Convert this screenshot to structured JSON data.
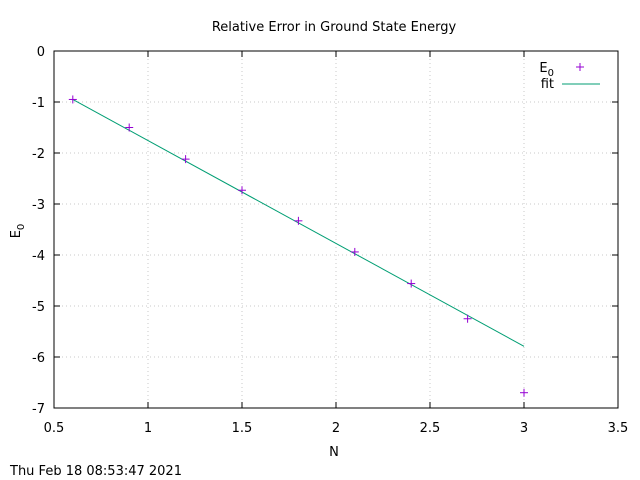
{
  "chart_data": {
    "type": "scatter",
    "title": "Relative Error in Ground State Energy",
    "xlabel": "N",
    "ylabel": {
      "base": "E",
      "sub": "0"
    },
    "xlim": [
      0.5,
      3.5
    ],
    "ylim": [
      -7,
      0
    ],
    "xticks": [
      0.5,
      1,
      1.5,
      2,
      2.5,
      3,
      3.5
    ],
    "xtick_labels": [
      "0.5",
      "1",
      "1.5",
      "2",
      "2.5",
      "3",
      "3.5"
    ],
    "yticks": [
      0,
      -1,
      -2,
      -3,
      -4,
      -5,
      -6,
      -7
    ],
    "ytick_labels": [
      "0",
      "-1",
      "-2",
      "-3",
      "-4",
      "-5",
      "-6",
      "-7"
    ],
    "grid": true,
    "legend_position": "top-right",
    "series": [
      {
        "name": {
          "base": "E",
          "sub": "0"
        },
        "kind": "points",
        "marker": "plus",
        "color": "#9400d3",
        "x": [
          0.6,
          0.9,
          1.2,
          1.5,
          1.8,
          2.1,
          2.4,
          2.7,
          3.0
        ],
        "y": [
          -0.95,
          -1.5,
          -2.12,
          -2.73,
          -3.33,
          -3.94,
          -4.56,
          -5.25,
          -6.7
        ]
      },
      {
        "name": "fit",
        "kind": "line",
        "color": "#009e73",
        "x": [
          0.6,
          3.0
        ],
        "y": [
          -0.95,
          -5.79
        ]
      }
    ]
  },
  "footer": {
    "timestamp": "Thu Feb 18 08:53:47 2021"
  }
}
